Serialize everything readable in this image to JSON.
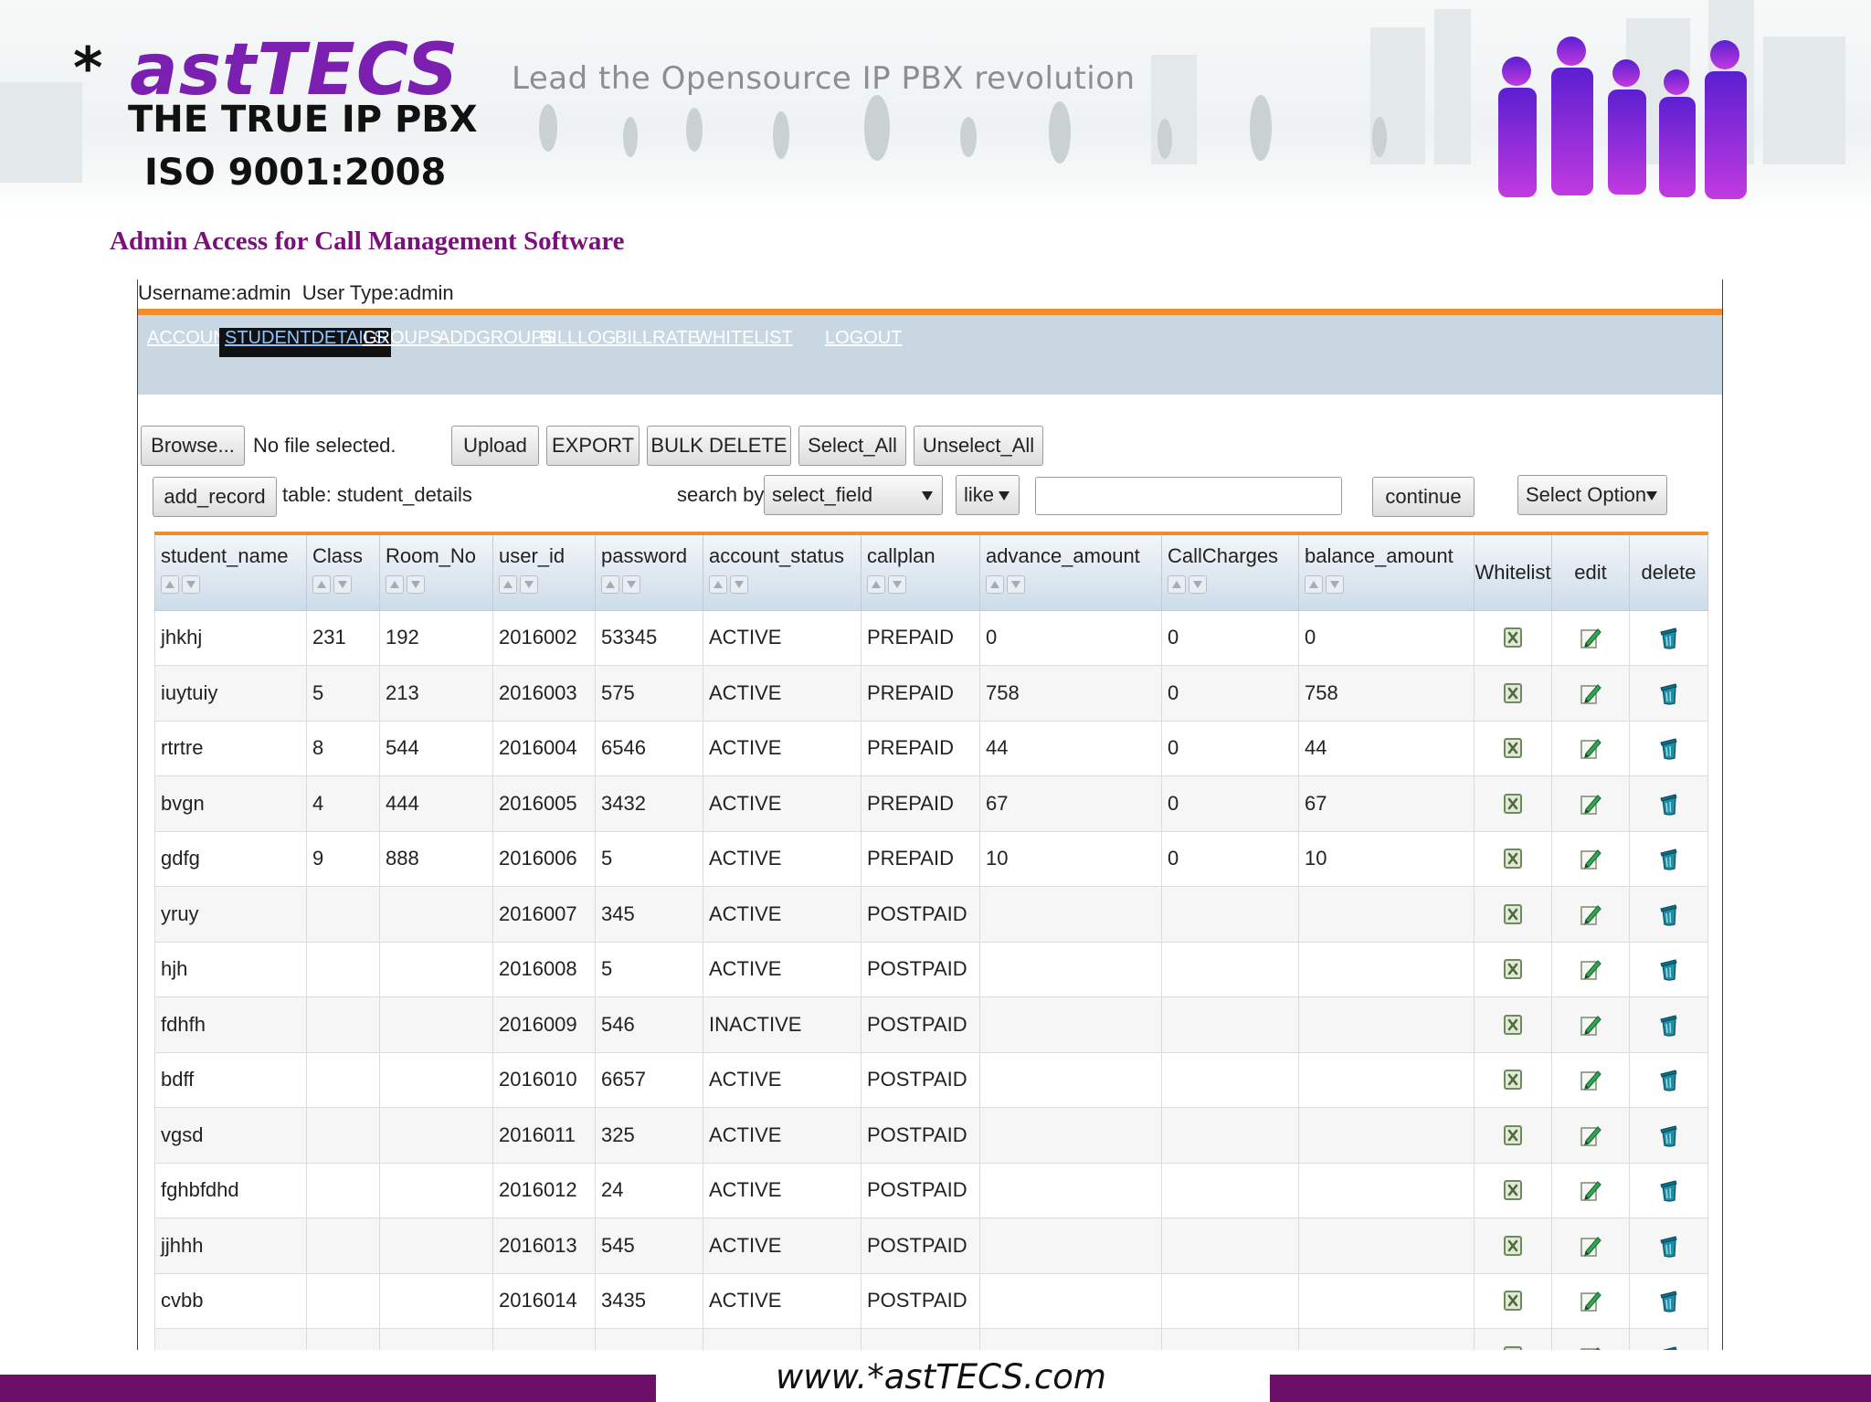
{
  "branding": {
    "star": "*",
    "brand": "astTECS",
    "tagline": "Lead the Opensource IP PBX revolution",
    "subtitle1": "THE TRUE IP PBX",
    "subtitle2": "ISO 9001:2008",
    "brand_color": "#7a1fb0"
  },
  "page_title": "Admin Access for Call Management Software",
  "session": {
    "username_label": "Username:admin",
    "usertype_label": "User Type:admin"
  },
  "nav": [
    {
      "label": "ACCOUNT",
      "active": false
    },
    {
      "label": "STUDENTDETAILS",
      "active": true
    },
    {
      "label": "GROUPS",
      "active": false
    },
    {
      "label": "ADDGROUPS",
      "active": false
    },
    {
      "label": "BILLLOG",
      "active": false
    },
    {
      "label": "BILLRATE",
      "active": false
    },
    {
      "label": "WHITELIST",
      "active": false
    },
    {
      "label": "LOGOUT",
      "active": false
    }
  ],
  "toolbar": {
    "browse_label": "Browse...",
    "file_status": "No file selected.",
    "upload_label": "Upload",
    "export_label": "EXPORT",
    "bulk_delete_label": "BULK DELETE",
    "select_all_label": "Select_All",
    "unselect_all_label": "Unselect_All",
    "add_record_label": "add_record",
    "table_label": "table: student_details",
    "search_by_label": "search by:",
    "field_select_value": "select_field",
    "operator_value": "like",
    "search_value": "",
    "continue_label": "continue",
    "option_select_value": "Select Option"
  },
  "table": {
    "columns": [
      "student_name",
      "Class",
      "Room_No",
      "user_id",
      "password",
      "account_status",
      "callplan",
      "advance_amount",
      "CallCharges",
      "balance_amount",
      "Whitelist",
      "edit",
      "delete"
    ],
    "icon_columns": {
      "whitelist": "whitelist-x-icon",
      "edit": "edit-pencil-icon",
      "delete": "delete-bin-icon"
    },
    "rows": [
      [
        "jhkhj",
        "231",
        "192",
        "2016002",
        "53345",
        "ACTIVE",
        "PREPAID",
        "0",
        "0",
        "0"
      ],
      [
        "iuytuiy",
        "5",
        "213",
        "2016003",
        "575",
        "ACTIVE",
        "PREPAID",
        "758",
        "0",
        "758"
      ],
      [
        "rtrtre",
        "8",
        "544",
        "2016004",
        "6546",
        "ACTIVE",
        "PREPAID",
        "44",
        "0",
        "44"
      ],
      [
        "bvgn",
        "4",
        "444",
        "2016005",
        "3432",
        "ACTIVE",
        "PREPAID",
        "67",
        "0",
        "67"
      ],
      [
        "gdfg",
        "9",
        "888",
        "2016006",
        "5",
        "ACTIVE",
        "PREPAID",
        "10",
        "0",
        "10"
      ],
      [
        "yruy",
        "",
        "",
        "2016007",
        "345",
        "ACTIVE",
        "POSTPAID",
        "",
        "",
        ""
      ],
      [
        "hjh",
        "",
        "",
        "2016008",
        "5",
        "ACTIVE",
        "POSTPAID",
        "",
        "",
        ""
      ],
      [
        "fdhfh",
        "",
        "",
        "2016009",
        "546",
        "INACTIVE",
        "POSTPAID",
        "",
        "",
        ""
      ],
      [
        "bdff",
        "",
        "",
        "2016010",
        "6657",
        "ACTIVE",
        "POSTPAID",
        "",
        "",
        ""
      ],
      [
        "vgsd",
        "",
        "",
        "2016011",
        "325",
        "ACTIVE",
        "POSTPAID",
        "",
        "",
        ""
      ],
      [
        "fghbfdhd",
        "",
        "",
        "2016012",
        "24",
        "ACTIVE",
        "POSTPAID",
        "",
        "",
        ""
      ],
      [
        "jjhhh",
        "",
        "",
        "2016013",
        "545",
        "ACTIVE",
        "POSTPAID",
        "",
        "",
        ""
      ],
      [
        "cvbb",
        "",
        "",
        "2016014",
        "3435",
        "ACTIVE",
        "POSTPAID",
        "",
        "",
        ""
      ],
      [
        "",
        "",
        "",
        "",
        "",
        "",
        "",
        "",
        "",
        ""
      ]
    ]
  },
  "footer": {
    "url": "www.*astTECS.com",
    "bar_color": "#6b0f6b"
  }
}
